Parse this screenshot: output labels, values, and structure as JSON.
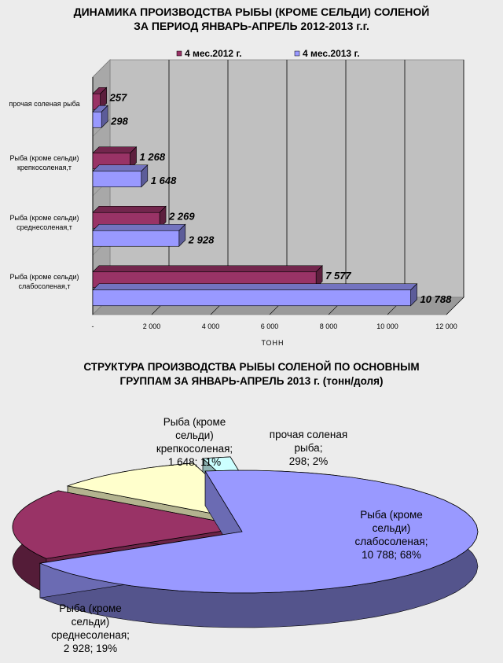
{
  "chart_data": [
    {
      "type": "bar",
      "orientation": "horizontal",
      "title": "ДИНАМИКА ПРОИЗВОДСТВА РЫБЫ (КРОМЕ СЕЛЬДИ) СОЛЕНОЙ ЗА ПЕРИОД ЯНВАРЬ-АПРЕЛЬ 2012-2013 г.г.",
      "categories": [
        "прочая соленая рыба",
        "Рыба (кроме сельди) крепкосоленая,т",
        "Рыба (кроме сельди) среднесоленая,т",
        "Рыба (кроме сельди) слабосоленая,т"
      ],
      "series": [
        {
          "name": "4 мес.2012 г.",
          "values": [
            257,
            1268,
            2269,
            7577
          ],
          "labels": [
            "257",
            "1 268",
            "2 269",
            "7 577"
          ],
          "color": "#993366"
        },
        {
          "name": "4 мес.2013 г.",
          "values": [
            298,
            1648,
            2928,
            10788
          ],
          "labels": [
            "298",
            "1 648",
            "2 928",
            "10 788"
          ],
          "color": "#9999ff"
        }
      ],
      "xlabel": "тонн",
      "xlim": [
        0,
        12000
      ],
      "xticks": [
        0,
        2000,
        4000,
        6000,
        8000,
        10000,
        12000
      ],
      "xtick_labels": [
        "-",
        "2 000",
        "4 000",
        "6 000",
        "8 000",
        "10 000",
        "12 000"
      ],
      "grid": true,
      "legend": "top",
      "style": "3d"
    },
    {
      "type": "pie",
      "title": "СТРУКТУРА ПРОИЗВОДСТВА РЫБЫ СОЛЕНОЙ ПО ОСНОВНЫМ ГРУППАМ ЗА ЯНВАРЬ-АПРЕЛЬ 2013 г. (тонн/доля)",
      "slices": [
        {
          "label": "Рыба (кроме сельди) слабосоленая",
          "value": 10788,
          "value_text": "10 788",
          "percent": "68%",
          "color": "#9999ff"
        },
        {
          "label": "Рыба (кроме сельди) среднесоленая",
          "value": 2928,
          "value_text": "2 928",
          "percent": "19%",
          "color": "#993366"
        },
        {
          "label": "Рыба (кроме сельди) крепкосоленая",
          "value": 1648,
          "value_text": "1 648",
          "percent": "11%",
          "color": "#ffffcc"
        },
        {
          "label": "прочая соленая рыба",
          "value": 298,
          "value_text": "298",
          "percent": "2%",
          "color": "#ccffff"
        }
      ],
      "style": "3d-exploded"
    }
  ],
  "bar_chart": {
    "title_line1": "ДИНАМИКА ПРОИЗВОДСТВА РЫБЫ (КРОМЕ СЕЛЬДИ) СОЛЕНОЙ",
    "title_line2": "ЗА ПЕРИОД ЯНВАРЬ-АПРЕЛЬ 2012-2013 г.г.",
    "category_lines": [
      [
        "прочая соленая рыба"
      ],
      [
        "Рыба (кроме сельди)",
        "крепкосоленая,т"
      ],
      [
        "Рыба (кроме сельди)",
        "среднесоленая,т"
      ],
      [
        "Рыба (кроме сельди)",
        "слабосоленая,т"
      ]
    ]
  },
  "pie_chart": {
    "title_line1": "СТРУКТУРА ПРОИЗВОДСТВА РЫБЫ СОЛЕНОЙ ПО ОСНОВНЫМ",
    "title_line2": "ГРУППАМ ЗА ЯНВАРЬ-АПРЕЛЬ 2013 г. (тонн/доля)",
    "slice_label_lines": [
      [
        "Рыба (кроме",
        "сельди)",
        "слабосоленая;",
        "10 788; 68%"
      ],
      [
        "Рыба (кроме",
        "сельди)",
        "среднесоленая;",
        "2 928; 19%"
      ],
      [
        "Рыба (кроме",
        "сельди)",
        "крепкосоленая;",
        "1 648; 11%"
      ],
      [
        "прочая соленая",
        "рыба;",
        "298; 2%"
      ]
    ]
  }
}
